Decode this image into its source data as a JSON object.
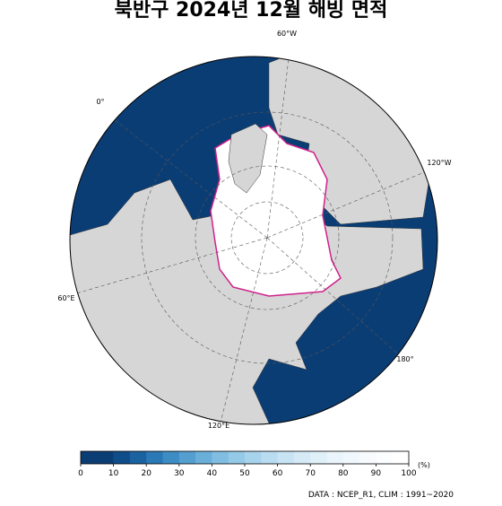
{
  "title": "북반구 2024년 12월 해빙 면적",
  "map": {
    "longitude_labels": [
      "60°W",
      "0°",
      "120°W",
      "60°E",
      "180°",
      "120°E"
    ]
  },
  "colorbar": {
    "ticks": [
      0,
      10,
      20,
      30,
      40,
      50,
      60,
      70,
      80,
      90,
      100
    ],
    "unit": "(%)",
    "colors": [
      "#0b3d75",
      "#0b3d75",
      "#0f4d8a",
      "#1b62a0",
      "#2a78b5",
      "#3d8cc4",
      "#549fd0",
      "#6aafd9",
      "#80bde1",
      "#94c9e7",
      "#a8d3ec",
      "#b9dcf0",
      "#c8e4f4",
      "#d5eaf6",
      "#e0f0f9",
      "#e9f4fb",
      "#f1f8fd",
      "#f7fbfe",
      "#fbfdff",
      "#ffffff"
    ]
  },
  "source": "DATA : NCEP_R1, CLIM : 1991~2020"
}
